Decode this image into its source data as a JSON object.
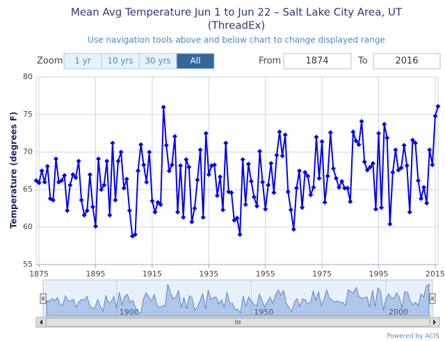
{
  "chart_data": {
    "type": "line",
    "title": "Mean Avg Temperature Jun 1 to Jun 22 – Salt Lake City Area, UT",
    "title2": "(ThreadEx)",
    "subtitle": "Use navigation tools above and below chart to change displayed range",
    "y_label": "Temperature (degrees F)",
    "zoom_label": "Zoom",
    "zoom_buttons": [
      "1 yr",
      "10 yrs",
      "30 yrs",
      "All"
    ],
    "zoom_selected": 3,
    "from_label": "From",
    "from": 1874,
    "to_label": "To",
    "to": 2016,
    "credit": "Powered by ACIS",
    "color": "#0000ee",
    "grid": true,
    "xlim": [
      1874,
      2016
    ],
    "xticks": [
      1875,
      1895,
      1915,
      1935,
      1955,
      1975,
      1995,
      2015
    ],
    "ylim": [
      55,
      80
    ],
    "yticks": [
      55,
      60,
      65,
      70,
      75,
      80
    ],
    "navigator_xticks": [
      1900,
      1950,
      2000
    ],
    "x": [
      1874,
      1875,
      1876,
      1877,
      1878,
      1879,
      1880,
      1881,
      1882,
      1883,
      1884,
      1885,
      1886,
      1887,
      1888,
      1889,
      1890,
      1891,
      1892,
      1893,
      1894,
      1895,
      1896,
      1897,
      1898,
      1899,
      1900,
      1901,
      1902,
      1903,
      1904,
      1905,
      1906,
      1907,
      1908,
      1909,
      1910,
      1911,
      1912,
      1913,
      1914,
      1915,
      1916,
      1917,
      1918,
      1919,
      1920,
      1921,
      1922,
      1923,
      1924,
      1925,
      1926,
      1927,
      1928,
      1929,
      1930,
      1931,
      1932,
      1933,
      1934,
      1935,
      1936,
      1937,
      1938,
      1939,
      1940,
      1941,
      1942,
      1943,
      1944,
      1945,
      1946,
      1947,
      1948,
      1949,
      1950,
      1951,
      1952,
      1953,
      1954,
      1955,
      1956,
      1957,
      1958,
      1959,
      1960,
      1961,
      1962,
      1963,
      1964,
      1965,
      1966,
      1967,
      1968,
      1969,
      1970,
      1971,
      1972,
      1973,
      1974,
      1975,
      1976,
      1977,
      1978,
      1979,
      1980,
      1981,
      1982,
      1983,
      1984,
      1985,
      1986,
      1987,
      1988,
      1989,
      1990,
      1991,
      1992,
      1993,
      1994,
      1995,
      1996,
      1997,
      1998,
      1999,
      2000,
      2001,
      2002,
      2003,
      2004,
      2005,
      2006,
      2007,
      2008,
      2009,
      2010,
      2011,
      2012,
      2013,
      2014,
      2015,
      2016
    ],
    "values": [
      66.2,
      65.9,
      67.5,
      66.0,
      68.1,
      63.8,
      63.6,
      69.1,
      66.0,
      66.2,
      66.9,
      62.2,
      65.6,
      67.0,
      66.6,
      68.8,
      63.6,
      61.6,
      62.2,
      67.0,
      62.7,
      60.1,
      69.1,
      65.0,
      65.6,
      68.8,
      61.6,
      71.2,
      63.6,
      68.8,
      70.0,
      65.2,
      66.4,
      62.2,
      58.8,
      59.0,
      67.5,
      71.0,
      68.3,
      66.0,
      70.0,
      63.5,
      62.0,
      63.3,
      63.0,
      76.0,
      70.9,
      67.5,
      68.3,
      72.1,
      62.0,
      68.2,
      61.3,
      69.0,
      68.0,
      60.7,
      62.5,
      66.3,
      70.3,
      61.3,
      72.5,
      67.0,
      68.2,
      68.3,
      64.2,
      66.7,
      62.3,
      71.2,
      64.7,
      64.6,
      60.9,
      61.2,
      59.0,
      69.0,
      63.0,
      68.4,
      66.1,
      64.0,
      62.8,
      70.1,
      66.0,
      62.4,
      65.6,
      68.5,
      64.6,
      69.6,
      72.7,
      69.5,
      72.3,
      64.7,
      62.3,
      59.7,
      65.2,
      67.5,
      62.6,
      67.3,
      66.8,
      64.3,
      65.3,
      72.0,
      66.5,
      71.4,
      63.3,
      66.8,
      72.6,
      67.8,
      66.5,
      65.3,
      66.1,
      65.2,
      65.2,
      63.4,
      72.7,
      71.5,
      71.0,
      74.1,
      68.7,
      67.6,
      68.0,
      68.5,
      62.4,
      72.5,
      62.6,
      73.7,
      71.9,
      60.4,
      67.3,
      70.3,
      67.6,
      67.9,
      70.9,
      68.2,
      62.0,
      71.6,
      71.2,
      66.2,
      63.8,
      65.3,
      63.2,
      70.3,
      68.3,
      74.8,
      76.1
    ]
  }
}
